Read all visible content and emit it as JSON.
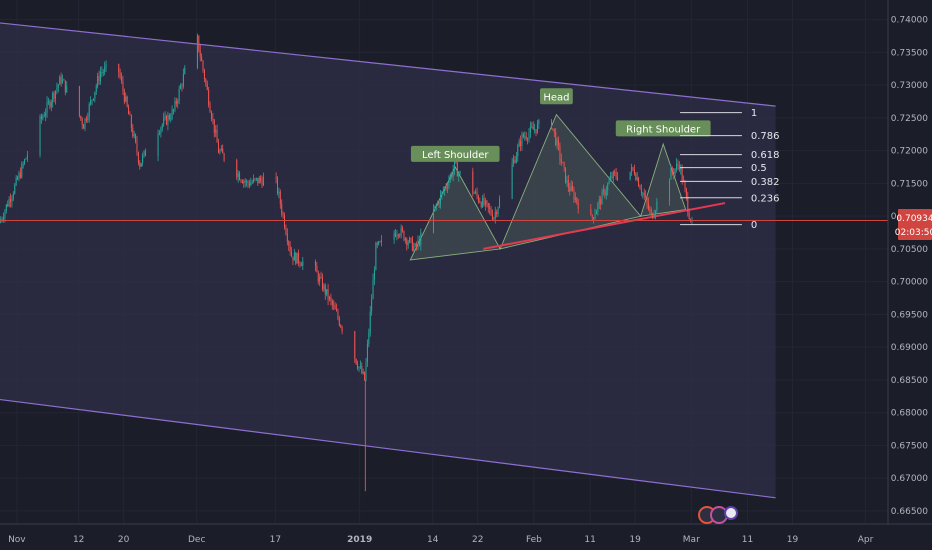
{
  "chart_data": {
    "type": "candlestick",
    "title": "",
    "xlabel": "",
    "ylabel": "",
    "ylim": [
      0.663,
      0.743
    ],
    "y_ticks": [
      "0.74000",
      "0.73500",
      "0.73000",
      "0.72500",
      "0.72000",
      "0.71500",
      "0.71000",
      "0.70500",
      "0.70000",
      "0.69500",
      "0.69000",
      "0.68500",
      "0.68000",
      "0.67500",
      "0.67000",
      "0.66500"
    ],
    "x_ticks": [
      "Nov",
      "12",
      "20",
      "Dec",
      "17",
      "2019",
      "14",
      "22",
      "Feb",
      "11",
      "19",
      "Mar",
      "11",
      "19",
      "Apr"
    ],
    "last_price": "0.70934",
    "countdown": "02:03:50",
    "price_anchors": [
      [
        "2018-10-29",
        0.709
      ],
      [
        "2018-11-01",
        0.715
      ],
      [
        "2018-11-05",
        0.724
      ],
      [
        "2018-11-09",
        0.731
      ],
      [
        "2018-11-13",
        0.724
      ],
      [
        "2018-11-16",
        0.732
      ],
      [
        "2018-11-19",
        0.733
      ],
      [
        "2018-11-23",
        0.718
      ],
      [
        "2018-11-26",
        0.723
      ],
      [
        "2018-11-29",
        0.726
      ],
      [
        "2018-12-03",
        0.738
      ],
      [
        "2018-12-07",
        0.72
      ],
      [
        "2018-12-12",
        0.715
      ],
      [
        "2018-12-17",
        0.716
      ],
      [
        "2018-12-20",
        0.704
      ],
      [
        "2018-12-24",
        0.702
      ],
      [
        "2018-12-28",
        0.695
      ],
      [
        "2019-01-02",
        0.685
      ],
      [
        "2019-01-04",
        0.705
      ],
      [
        "2019-01-08",
        0.708
      ],
      [
        "2019-01-11",
        0.705
      ],
      [
        "2019-01-15",
        0.712
      ],
      [
        "2019-01-18",
        0.7175
      ],
      [
        "2019-01-22",
        0.713
      ],
      [
        "2019-01-25",
        0.71
      ],
      [
        "2019-01-30",
        0.722
      ],
      [
        "2019-02-04",
        0.725
      ],
      [
        "2019-02-07",
        0.715
      ],
      [
        "2019-02-11",
        0.709
      ],
      [
        "2019-02-15",
        0.716
      ],
      [
        "2019-02-19",
        0.717
      ],
      [
        "2019-02-22",
        0.71
      ],
      [
        "2019-02-25",
        0.716
      ],
      [
        "2019-02-27",
        0.718
      ],
      [
        "2019-03-01",
        0.7093
      ]
    ],
    "wicks": [
      [
        "2019-01-02",
        0.668
      ]
    ],
    "channel": {
      "upper": [
        [
          "2018-10-29",
          0.7395
        ],
        [
          "2019-03-16",
          0.7268
        ]
      ],
      "lower": [
        [
          "2018-10-29",
          0.682
        ],
        [
          "2019-03-16",
          0.667
        ]
      ],
      "fill_until": "2019-03-16"
    },
    "pattern": {
      "labels": [
        {
          "text": "Left Shoulder",
          "date": "2019-01-18",
          "price": 0.7195
        },
        {
          "text": "Head",
          "date": "2019-02-05",
          "price": 0.7283
        },
        {
          "text": "Right Shoulder",
          "date": "2019-02-24",
          "price": 0.7234
        }
      ],
      "left_triangle": [
        [
          "2019-01-10",
          0.7033
        ],
        [
          "2019-01-18",
          0.7175
        ],
        [
          "2019-01-26",
          0.705
        ]
      ],
      "head_triangle": [
        [
          "2019-01-26",
          0.705
        ],
        [
          "2019-02-05",
          0.7255
        ],
        [
          "2019-02-20",
          0.71
        ]
      ],
      "right_triangle": [
        [
          "2019-02-20",
          0.71
        ],
        [
          "2019-02-24",
          0.721
        ],
        [
          "2019-02-28",
          0.711
        ]
      ],
      "neckline": [
        [
          "2019-01-23",
          0.705
        ],
        [
          "2019-03-07",
          0.712
        ]
      ]
    },
    "fibonacci": {
      "start": "2019-02-27",
      "end": "2019-03-10",
      "levels": [
        {
          "label": "1",
          "price": 0.7258
        },
        {
          "label": "0.786",
          "price": 0.7223
        },
        {
          "label": "0.618",
          "price": 0.7194
        },
        {
          "label": "0.5",
          "price": 0.7174
        },
        {
          "label": "0.382",
          "price": 0.7153
        },
        {
          "label": "0.236",
          "price": 0.7128
        },
        {
          "label": "0",
          "price": 0.7087
        }
      ]
    },
    "last_price_line": 0.70934,
    "colors": {
      "background": "#1b1d29",
      "up": "#26a69a",
      "down": "#ef5350",
      "channel": "#8e6fd1",
      "pattern": "#9fcf8a",
      "neckline": "#e53950",
      "price_line": "#d0453f"
    }
  }
}
